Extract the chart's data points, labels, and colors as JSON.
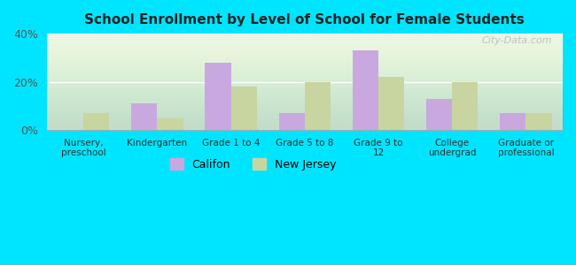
{
  "title": "School Enrollment by Level of School for Female Students",
  "categories": [
    "Nursery,\npreschool",
    "Kindergarten",
    "Grade 1 to 4",
    "Grade 5 to 8",
    "Grade 9 to\n12",
    "College\nundergrad",
    "Graduate or\nprofessional"
  ],
  "califon": [
    0,
    11,
    28,
    7,
    33,
    13,
    7
  ],
  "new_jersey": [
    7,
    5,
    18,
    20,
    22,
    20,
    7
  ],
  "califon_color": "#c9a8e0",
  "new_jersey_color": "#c8d5a0",
  "background_color": "#00e5ff",
  "ylim": [
    0,
    40
  ],
  "yticks": [
    0,
    20,
    40
  ],
  "ytick_labels": [
    "0%",
    "20%",
    "40%"
  ],
  "bar_width": 0.35,
  "watermark": "City-Data.com",
  "legend_labels": [
    "Califon",
    "New Jersey"
  ]
}
